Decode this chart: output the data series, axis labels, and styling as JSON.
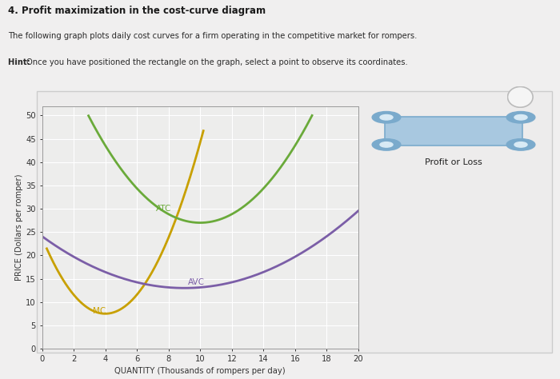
{
  "title": "4. Profit maximization in the cost-curve diagram",
  "subtitle1": "The following graph plots daily cost curves for a firm operating in the competitive market for rompers.",
  "subtitle2": "Hint: Once you have positioned the rectangle on the graph, select a point to observe its coordinates.",
  "xlabel": "QUANTITY (Thousands of rompers per day)",
  "ylabel": "PRICE (Dollars per romper)",
  "xlim": [
    0,
    20
  ],
  "ylim": [
    0,
    52
  ],
  "xticks": [
    0,
    2,
    4,
    6,
    8,
    10,
    12,
    14,
    16,
    18,
    20
  ],
  "yticks": [
    0,
    5,
    10,
    15,
    20,
    25,
    30,
    35,
    40,
    45,
    50
  ],
  "mc_color": "#c8a000",
  "atc_color": "#6aaa3a",
  "avc_color": "#7b5ea7",
  "plot_bg": "#ededec",
  "outer_bg": "#e0dede",
  "legend_label": "Profit or Loss",
  "legend_box_color": "#a8c8e0",
  "legend_dot_color": "#7aaacc",
  "question_mark": "?"
}
